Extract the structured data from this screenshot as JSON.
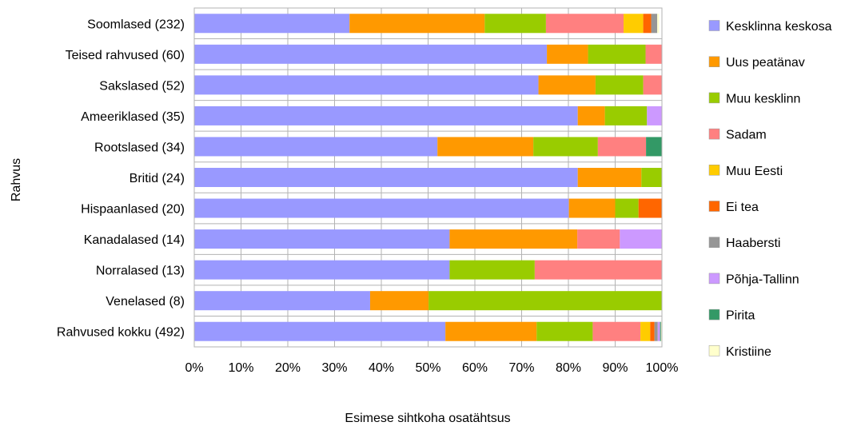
{
  "chart_data": {
    "type": "bar",
    "orientation": "horizontal",
    "stacked": "percent",
    "title": "",
    "xlabel": "Esimese sihtkoha osatähtsus",
    "ylabel": "Rahvus",
    "xlim": [
      0,
      100
    ],
    "x_ticks": [
      "0%",
      "10%",
      "20%",
      "30%",
      "40%",
      "50%",
      "60%",
      "70%",
      "80%",
      "90%",
      "100%"
    ],
    "grid": true,
    "legend_position": "right",
    "categories": [
      "Soomlased (232)",
      "Teised rahvused (60)",
      "Sakslased (52)",
      "Ameeriklased (35)",
      "Rootslased (34)",
      "Britid (24)",
      "Hispaanlased (20)",
      "Kanadalased (14)",
      "Norralased (13)",
      "Venelased (8)",
      "Rahvused kokku (492)"
    ],
    "series": [
      {
        "name": "Kesklinna keskosa",
        "color": "#9999ff",
        "values": [
          33.2,
          75.4,
          73.6,
          82.0,
          52.0,
          82.0,
          80.1,
          54.6,
          54.6,
          37.6,
          53.7
        ]
      },
      {
        "name": "Uus peatänav",
        "color": "#ff9900",
        "values": [
          28.9,
          8.8,
          12.2,
          5.8,
          20.5,
          13.6,
          9.9,
          27.3,
          0,
          12.5,
          19.5
        ]
      },
      {
        "name": "Muu kesklinn",
        "color": "#99cc00",
        "values": [
          13.1,
          12.3,
          10.2,
          9.0,
          13.8,
          4.4,
          5.0,
          0,
          18.2,
          49.9,
          12.0
        ]
      },
      {
        "name": "Sadam",
        "color": "#ff8080",
        "values": [
          16.6,
          3.5,
          4.0,
          0,
          10.3,
          0,
          0,
          9.1,
          27.2,
          0,
          10.2
        ]
      },
      {
        "name": "Muu Eesti",
        "color": "#ffcc00",
        "values": [
          4.2,
          0,
          0,
          0,
          0,
          0,
          0,
          0,
          0,
          0,
          2.1
        ]
      },
      {
        "name": "Ei tea",
        "color": "#ff6600",
        "values": [
          1.7,
          0,
          0,
          0,
          0,
          0,
          5.0,
          0,
          0,
          0,
          0.9
        ]
      },
      {
        "name": "Haabersti",
        "color": "#969696",
        "values": [
          1.3,
          0,
          0,
          0,
          0,
          0,
          0,
          0,
          0,
          0,
          0.7
        ]
      },
      {
        "name": "Põhja-Tallinn",
        "color": "#cc99ff",
        "values": [
          0,
          0,
          0,
          3.2,
          0,
          0,
          0,
          9.0,
          0,
          0,
          0.5
        ]
      },
      {
        "name": "Pirita",
        "color": "#339966",
        "values": [
          0,
          0,
          0,
          0,
          3.4,
          0,
          0,
          0,
          0,
          0,
          0.2
        ]
      },
      {
        "name": "Kristiine",
        "color": "#ffffcc",
        "values": [
          0.4,
          0,
          0,
          0,
          0,
          0,
          0,
          0,
          0,
          0,
          0.2
        ]
      }
    ]
  }
}
